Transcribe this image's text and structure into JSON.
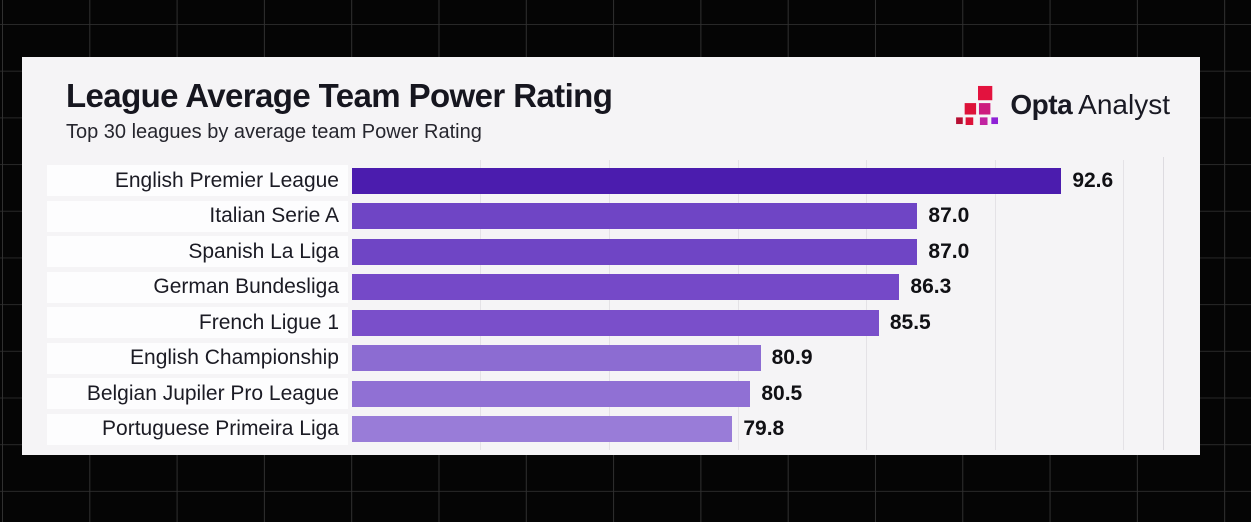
{
  "header": {
    "title": "League Average Team Power Rating",
    "subtitle": "Top 30 leagues by average team Power Rating"
  },
  "logo": {
    "icon": "opta-staircase-squares-icon",
    "brand_bold": "Opta",
    "brand_light": "Analyst",
    "square_colors": [
      "#e3123e",
      "#dd1239",
      "#cd1a7e",
      "#b60f33",
      "#dd1239",
      "#c windows",
      "#8f21d6"
    ]
  },
  "chart_data": {
    "type": "bar",
    "orientation": "horizontal",
    "title": "League Average Team Power Rating",
    "subtitle": "Top 30 leagues by average team Power Rating",
    "categories": [
      "English Premier League",
      "Italian Serie A",
      "Spanish La Liga",
      "German Bundesliga",
      "French Ligue 1",
      "English Championship",
      "Belgian Jupiler Pro League",
      "Portuguese Primeira Liga"
    ],
    "values": [
      92.6,
      87.0,
      87.0,
      86.3,
      85.5,
      80.9,
      80.5,
      79.8
    ],
    "value_labels": [
      "92.6",
      "87.0",
      "87.0",
      "86.3",
      "85.5",
      "80.9",
      "80.5",
      "79.8"
    ],
    "bar_colors": [
      "#4b1cae",
      "#6f45c5",
      "#6f45c5",
      "#7549c8",
      "#7a4fca",
      "#8c6cd2",
      "#9070d4",
      "#997cd8"
    ],
    "xlim": [
      65,
      95
    ],
    "gridlines": [
      70,
      75,
      80,
      85,
      90,
      95
    ],
    "grid": "vertical-faint",
    "legend": "none",
    "xlabel": "",
    "ylabel": ""
  },
  "colors": {
    "page_background": "#050505",
    "card_background": "#f5f4f6",
    "label_band": "#fdfdfe",
    "title_text": "#16161f",
    "value_text": "#101014",
    "gridline": "#e4e2e6",
    "bar_max": "#4b1cae",
    "bar_min": "#997cd8"
  }
}
